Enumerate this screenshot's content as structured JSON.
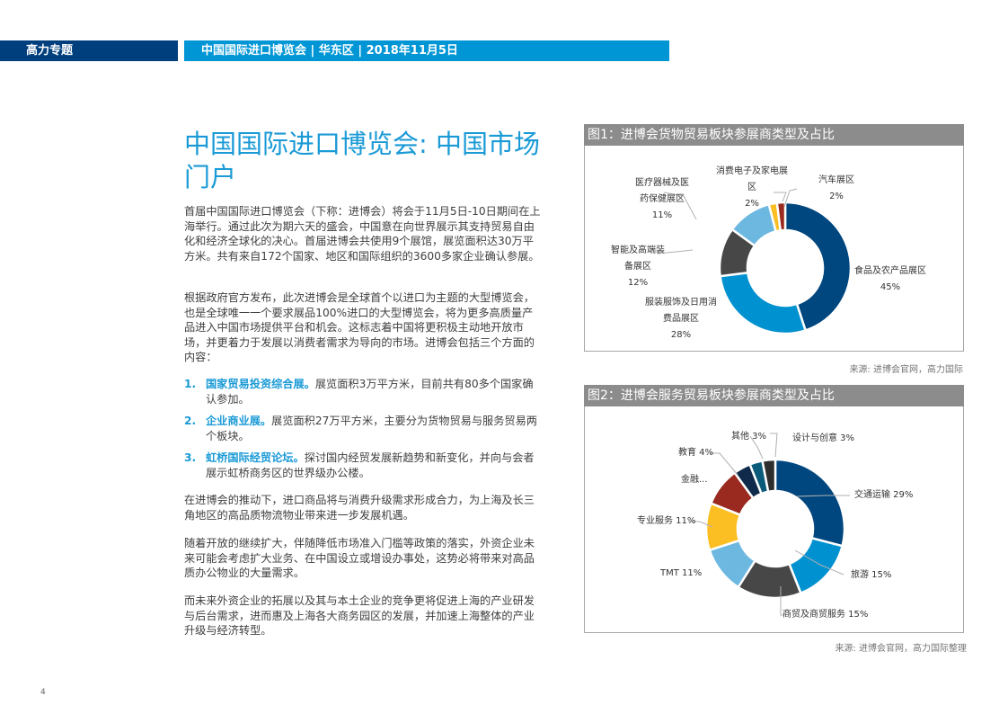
{
  "header": {
    "section_label": "高力专题",
    "banner_text": "中国国际进口博览会 | 华东区 | 2018年11月5日"
  },
  "colors": {
    "dark_blue": "#003f7d",
    "bright_blue": "#0096d6",
    "title_blue": "#1a9ad6",
    "figure_header_gray": "#8c8c8c"
  },
  "article": {
    "title": "中国国际进口博览会: 中国市场门户",
    "paragraph_1": "首届中国国际进口博览会（下称：进博会）将会于11月5日-10日期间在上海举行。通过此次为期六天的盛会，中国意在向世界展示其支持贸易自由化和经济全球化的决心。首届进博会共使用9个展馆，展览面积达30万平方米。共有来自172个国家、地区和国际组织的3600多家企业确认参展。",
    "paragraph_2": "根据政府官方发布，此次进博会是全球首个以进口为主题的大型博览会，也是全球唯一一个要求展品100%进口的大型博览会，将为更多高质量产品进入中国市场提供平台和机会。这标志着中国将更积极主动地开放市场，并更着力于发展以消费者需求为导向的市场。进博会包括三个方面的内容：",
    "list": [
      {
        "num": "1.",
        "title": "国家贸易投资综合展。",
        "text": "展览面积3万平方米，目前共有80多个国家确认参加。"
      },
      {
        "num": "2.",
        "title": "企业商业展。",
        "text": "展览面积27万平方米，主要分为货物贸易与服务贸易两个板块。"
      },
      {
        "num": "3.",
        "title": "虹桥国际经贸论坛。",
        "text": "探讨国内经贸发展新趋势和新变化，并向与会者展示虹桥商务区的世界级办公楼。"
      }
    ],
    "paragraph_3": "在进博会的推动下，进口商品将与消费升级需求形成合力，为上海及长三角地区的高品质物流物业带来进一步发展机遇。",
    "paragraph_4": "随着开放的继续扩大，伴随降低市场准入门槛等政策的落实，外资企业未来可能会考虑扩大业务、在中国设立或增设办事处，这势必将带来对高品质办公物业的大量需求。",
    "paragraph_5": "而未来外资企业的拓展以及其与本土企业的竞争更将促进上海的产业研发与后台需求，进而惠及上海各大商务园区的发展，并加速上海整体的产业升级与经济转型。"
  },
  "page_number": "4",
  "figure1": {
    "title": "图1：进博会货物贸易板块参展商类型及占比",
    "source": "来源: 进博会官网，高力国际",
    "labels": {
      "food": [
        "食品及农产品展区",
        "45%"
      ],
      "apparel": [
        "服装服饰及日用消",
        "费品展区",
        "28%"
      ],
      "smart": [
        "智能及高端装",
        "备展区",
        "12%"
      ],
      "medical": [
        "医疗器械及医",
        "药保健展区",
        "11%"
      ],
      "electronics": [
        "消费电子及家电展",
        "区",
        "2%"
      ],
      "auto": [
        "汽车展区",
        "2%"
      ]
    }
  },
  "figure2": {
    "title": "图2：进博会服务贸易板块参展商类型及占比",
    "source": "来源: 进博会官网，高力国际整理",
    "labels": {
      "transport": "交通运输 29%",
      "tourism": "旅游 15%",
      "commerce": "商贸及商贸服务 15%",
      "tmt": "TMT 11%",
      "professional": "专业服务 11%",
      "finance": "金融...",
      "education": "教育 4%",
      "other": "其他 3%",
      "design": "设计与创意 3%"
    }
  },
  "chart_data": [
    {
      "type": "pie",
      "title": "图1：进博会货物贸易板块参展商类型及占比",
      "donut": true,
      "categories": [
        "食品及农产品展区",
        "服装服饰及日用消费品展区",
        "智能及高端装备展区",
        "医疗器械及医药保健展区",
        "消费电子及家电展区",
        "汽车展区"
      ],
      "values": [
        45,
        28,
        12,
        11,
        2,
        2
      ],
      "unit": "%",
      "colors": [
        "#00467f",
        "#0091d0",
        "#474747",
        "#6cb8e0",
        "#fbbf24",
        "#9a2a1f"
      ],
      "source": "来源: 进博会官网，高力国际"
    },
    {
      "type": "pie",
      "title": "图2：进博会服务贸易板块参展商类型及占比",
      "donut": true,
      "categories": [
        "交通运输",
        "旅游",
        "商贸及商贸服务",
        "TMT",
        "专业服务",
        "金融",
        "教育",
        "其他",
        "设计与创意"
      ],
      "values": [
        29,
        15,
        15,
        11,
        11,
        9,
        4,
        3,
        3
      ],
      "unit": "%",
      "colors": [
        "#00467f",
        "#0091d0",
        "#474747",
        "#6cb8e0",
        "#fbbf24",
        "#9a2a1f",
        "#0f2a4a",
        "#0a5b7a",
        "#2e2e2e"
      ],
      "source": "来源: 进博会官网，高力国际整理"
    }
  ]
}
